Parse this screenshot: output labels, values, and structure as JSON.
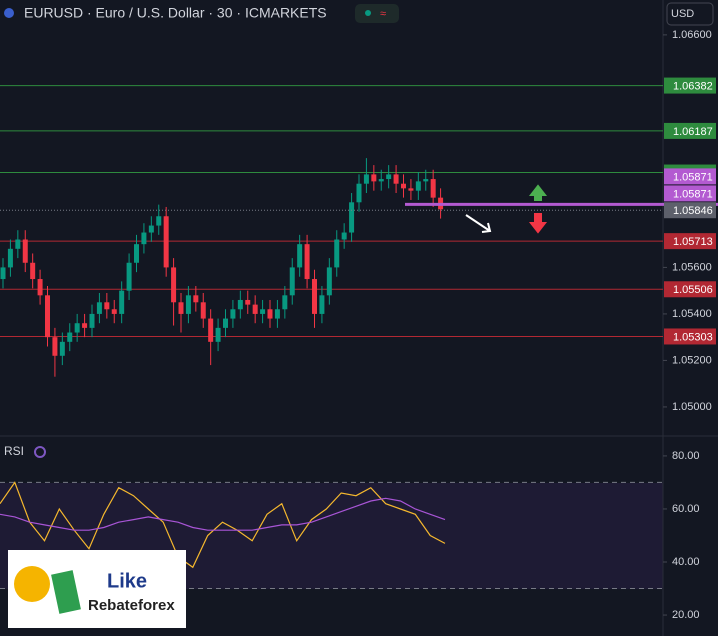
{
  "chart_data": [
    {
      "type": "candlestick",
      "title": "EURUSD · Euro / U.S. Dollar · 30 · ICMARKETS",
      "currency": "USD",
      "up_color": "#089981",
      "down_color": "#f23645",
      "ylim": [
        1.04875,
        1.0675
      ],
      "yticks": [
        {
          "value": 1.066,
          "label": "1.06600"
        },
        {
          "value": 1.056,
          "label": "1.05600"
        },
        {
          "value": 1.054,
          "label": "1.05400"
        },
        {
          "value": 1.052,
          "label": "1.05200"
        },
        {
          "value": 1.05,
          "label": "1.05000"
        }
      ],
      "open": [
        1.0555,
        1.056,
        1.0568,
        1.0572,
        1.0562,
        1.0555,
        1.0548,
        1.053,
        1.0522,
        1.0528,
        1.0532,
        1.0536,
        1.0534,
        1.054,
        1.0545,
        1.0542,
        1.054,
        1.055,
        1.0562,
        1.057,
        1.0575,
        1.0578,
        1.0582,
        1.056,
        1.0545,
        1.054,
        1.0548,
        1.0545,
        1.0538,
        1.0528,
        1.0534,
        1.0538,
        1.0542,
        1.0546,
        1.0544,
        1.054,
        1.0542,
        1.0538,
        1.0542,
        1.0548,
        1.056,
        1.057,
        1.0555,
        1.054,
        1.0548,
        1.056,
        1.0572,
        1.0575,
        1.0588,
        1.0596,
        1.06,
        1.0597,
        1.0598,
        1.06,
        1.0596,
        1.0594,
        1.0593,
        1.0597,
        1.0598,
        1.059
      ],
      "high": [
        1.0564,
        1.0572,
        1.0576,
        1.0576,
        1.0566,
        1.0559,
        1.0552,
        1.0534,
        1.0532,
        1.0536,
        1.054,
        1.054,
        1.0544,
        1.0549,
        1.0549,
        1.0546,
        1.0554,
        1.0566,
        1.0574,
        1.0579,
        1.0582,
        1.0587,
        1.0586,
        1.0564,
        1.0549,
        1.0552,
        1.0552,
        1.0549,
        1.0542,
        1.0538,
        1.0542,
        1.0546,
        1.055,
        1.055,
        1.0548,
        1.0546,
        1.0546,
        1.0546,
        1.0552,
        1.0564,
        1.0574,
        1.0574,
        1.0559,
        1.0552,
        1.0564,
        1.0576,
        1.0579,
        1.0592,
        1.06,
        1.0607,
        1.0604,
        1.0602,
        1.0604,
        1.0604,
        1.06,
        1.0598,
        1.0601,
        1.0602,
        1.0602,
        1.0594
      ],
      "low": [
        1.0551,
        1.0556,
        1.0564,
        1.0558,
        1.0551,
        1.0544,
        1.0526,
        1.0513,
        1.0518,
        1.0524,
        1.0528,
        1.053,
        1.053,
        1.0536,
        1.0538,
        1.0536,
        1.0536,
        1.0546,
        1.0558,
        1.0566,
        1.0571,
        1.0574,
        1.0556,
        1.0535,
        1.0532,
        1.0536,
        1.0541,
        1.0534,
        1.0518,
        1.0524,
        1.053,
        1.0534,
        1.0538,
        1.054,
        1.0536,
        1.0536,
        1.0534,
        1.0534,
        1.0538,
        1.0544,
        1.0556,
        1.0551,
        1.0534,
        1.0536,
        1.0544,
        1.0556,
        1.0568,
        1.0571,
        1.0584,
        1.0592,
        1.0593,
        1.0593,
        1.0594,
        1.0592,
        1.059,
        1.0589,
        1.0589,
        1.0593,
        1.0586,
        1.0581
      ],
      "close": [
        1.056,
        1.0568,
        1.0572,
        1.0562,
        1.0555,
        1.0548,
        1.053,
        1.0522,
        1.0528,
        1.0532,
        1.0536,
        1.0534,
        1.054,
        1.0545,
        1.0542,
        1.054,
        1.055,
        1.0562,
        1.057,
        1.0575,
        1.0578,
        1.0582,
        1.056,
        1.0545,
        1.054,
        1.0548,
        1.0545,
        1.0538,
        1.0528,
        1.0534,
        1.0538,
        1.0542,
        1.0546,
        1.0544,
        1.054,
        1.0542,
        1.0538,
        1.0542,
        1.0548,
        1.056,
        1.057,
        1.0555,
        1.054,
        1.0548,
        1.056,
        1.0572,
        1.0575,
        1.0588,
        1.0596,
        1.06,
        1.0597,
        1.0598,
        1.06,
        1.0596,
        1.0594,
        1.0593,
        1.0597,
        1.0598,
        1.059,
        1.0585
      ],
      "levels": [
        {
          "value": 1.06382,
          "color": "#2e8b3e"
        },
        {
          "value": 1.06187,
          "color": "#2e8b3e"
        },
        {
          "value": 1.06008,
          "color": "#2e8b3e"
        },
        {
          "value": 1.05713,
          "color": "#b22833"
        },
        {
          "value": 1.05506,
          "color": "#b22833"
        },
        {
          "value": 1.05303,
          "color": "#b22833"
        }
      ],
      "alert_line": {
        "value": 1.05871,
        "color": "#b35ad1"
      },
      "last_price": {
        "value": 1.05846,
        "color": "#5d606b"
      }
    },
    {
      "type": "line",
      "title": "RSI",
      "ylim": [
        12.1,
        86
      ],
      "yticks": [
        {
          "value": 80,
          "label": "80.00"
        },
        {
          "value": 60,
          "label": "60.00"
        },
        {
          "value": 40,
          "label": "40.00"
        },
        {
          "value": 20,
          "label": "20.00"
        }
      ],
      "band": [
        70,
        30
      ],
      "series": [
        {
          "color": "#f5b82e",
          "values": [
            62,
            70,
            55,
            48,
            60,
            52,
            45,
            58,
            68,
            65,
            60,
            55,
            42,
            38,
            50,
            55,
            52,
            48,
            58,
            62,
            48,
            56,
            60,
            66,
            65,
            68,
            62,
            60,
            58,
            50,
            47
          ]
        },
        {
          "color": "#a855d6",
          "values": [
            58,
            57,
            55,
            54,
            53,
            52,
            52,
            53,
            55,
            56,
            57,
            56,
            55,
            53,
            52,
            52,
            52,
            52,
            53,
            54,
            54,
            55,
            57,
            59,
            61,
            63,
            64,
            63,
            60,
            58,
            56
          ]
        }
      ]
    }
  ],
  "logo": {
    "line1": "Like",
    "line2": "Rebateforex"
  }
}
